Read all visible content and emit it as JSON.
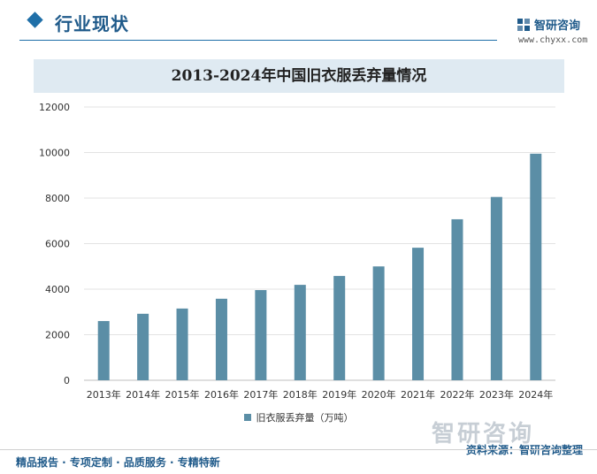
{
  "header": {
    "section_title": "行业现状",
    "brand_name": "智研咨询",
    "brand_url": "www.chyxx.com"
  },
  "chart_data": {
    "type": "bar",
    "title": "2013-2024年中国旧衣服丢弃量情况",
    "categories": [
      "2013年",
      "2014年",
      "2015年",
      "2016年",
      "2017年",
      "2018年",
      "2019年",
      "2020年",
      "2021年",
      "2022年",
      "2023年",
      "2024年"
    ],
    "series": [
      {
        "name": "旧衣服丢弃量（万吨）",
        "values": [
          2600,
          2920,
          3150,
          3580,
          3960,
          4190,
          4580,
          5000,
          5820,
          7070,
          8050,
          9950
        ]
      }
    ],
    "ylim": [
      0,
      12000
    ],
    "yticks": [
      0,
      2000,
      4000,
      6000,
      8000,
      10000,
      12000
    ],
    "grid": true,
    "legend": "bottom",
    "bar_color": "#5b8ea6"
  },
  "footer": {
    "left_text": "精品报告 · 专项定制 · 品质服务 · 专精特新",
    "right_text": "资料来源：智研咨询整理",
    "logo_text": "智研咨询"
  }
}
